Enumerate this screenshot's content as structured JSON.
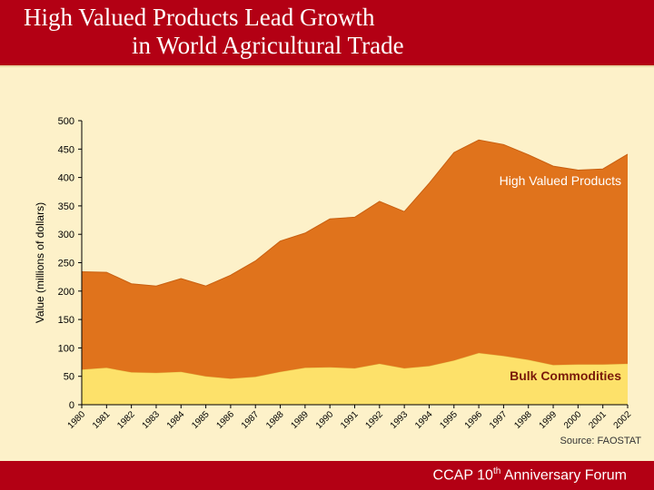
{
  "header": {
    "title_line1": "High Valued Products Lead Growth",
    "title_line2": "in World Agricultural Trade"
  },
  "footer": {
    "text_prefix": "CCAP 10",
    "text_sup": "th",
    "text_suffix": " Anniversary Forum"
  },
  "source": "Source: FAOSTAT",
  "colors": {
    "header_bg": "#b30014",
    "slide_bg": "#fdf1c9",
    "high_valued": "#e0731c",
    "bulk": "#fde16a"
  },
  "chart_data": {
    "type": "area",
    "stacked": true,
    "title": "",
    "xlabel": "",
    "ylabel": "Value (millions of dollars)",
    "ylim": [
      0,
      500
    ],
    "yticks": [
      0,
      50,
      100,
      150,
      200,
      250,
      300,
      350,
      400,
      450,
      500
    ],
    "x": [
      "1980",
      "1981",
      "1982",
      "1983",
      "1984",
      "1985",
      "1986",
      "1987",
      "1988",
      "1989",
      "1990",
      "1991",
      "1992",
      "1993",
      "1994",
      "1995",
      "1996",
      "1997",
      "1998",
      "1999",
      "2000",
      "2001",
      "2002"
    ],
    "series": [
      {
        "name": "Bulk Commodities",
        "color": "#fde16a",
        "values": [
          62,
          65,
          57,
          56,
          58,
          50,
          46,
          49,
          58,
          65,
          66,
          64,
          72,
          64,
          68,
          78,
          91,
          86,
          79,
          70,
          71,
          71,
          72
        ]
      },
      {
        "name": "High Valued Products",
        "color": "#e0731c",
        "values": [
          172,
          168,
          156,
          153,
          164,
          159,
          182,
          204,
          230,
          237,
          261,
          266,
          286,
          276,
          322,
          366,
          375,
          372,
          361,
          350,
          342,
          344,
          369
        ]
      }
    ],
    "totals": [
      234,
      233,
      213,
      209,
      222,
      209,
      228,
      253,
      288,
      302,
      327,
      330,
      358,
      340,
      390,
      444,
      466,
      458,
      440,
      420,
      413,
      415,
      441
    ],
    "annotations": [
      "High Valued Products",
      "Bulk Commodities"
    ]
  }
}
